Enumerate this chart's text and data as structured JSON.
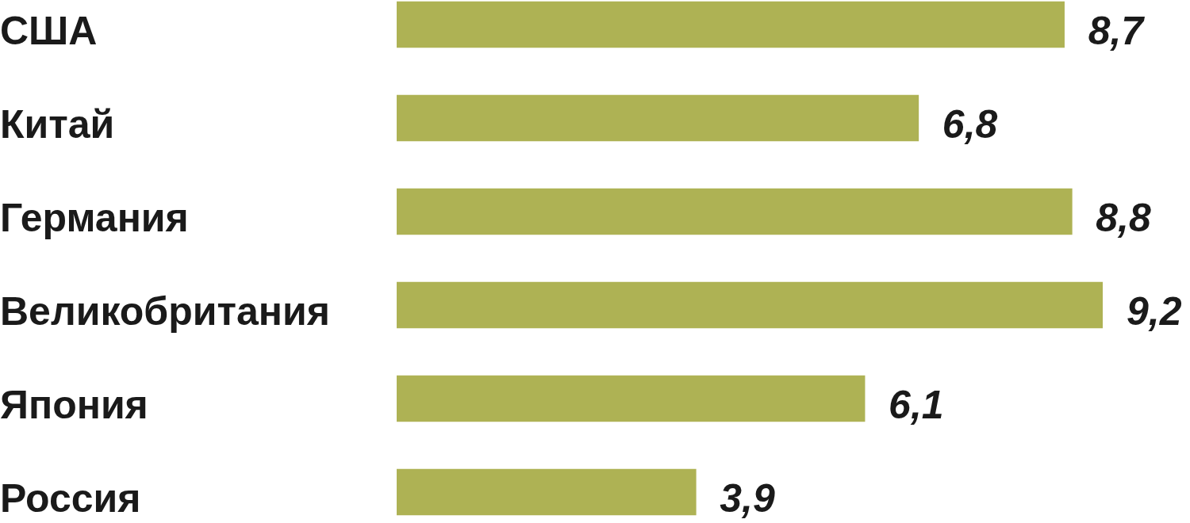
{
  "chart_data": {
    "type": "bar",
    "orientation": "horizontal",
    "categories": [
      "США",
      "Китай",
      "Германия",
      "Великобритания",
      "Япония",
      "Россия"
    ],
    "values": [
      8.7,
      6.8,
      8.8,
      9.2,
      6.1,
      3.9
    ],
    "value_labels": [
      "8,7",
      "6,8",
      "8,8",
      "9,2",
      "6,1",
      "3,9"
    ],
    "color": "#aeb254",
    "tick_labels": "y",
    "grid": false,
    "legend": false
  }
}
